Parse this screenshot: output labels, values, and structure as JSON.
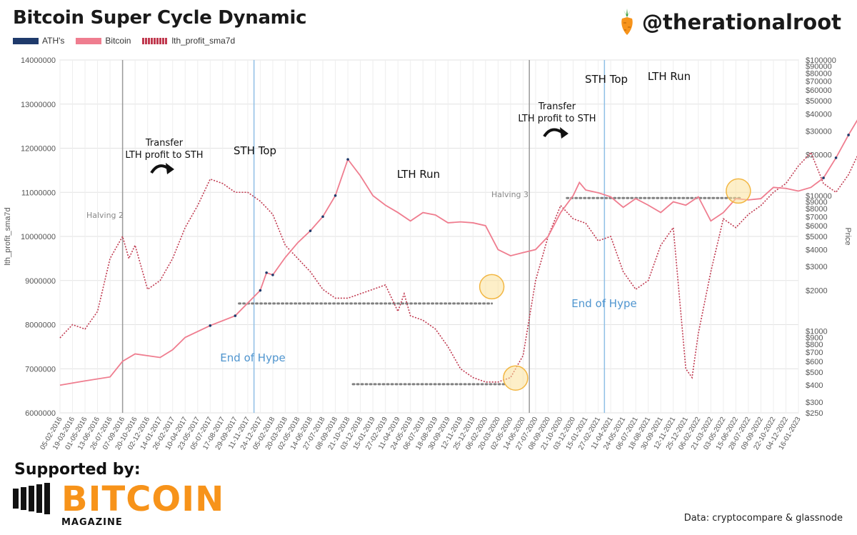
{
  "title": "Bitcoin Super Cycle Dynamic",
  "handle": "@therationalroot",
  "footer": {
    "supported": "Supported by:",
    "brand": "BITCOIN",
    "brand_sub": "MAGAZINE",
    "source": "Data: cryptocompare & glassnode"
  },
  "colors": {
    "ath": "#1f3a6b",
    "bitcoin": "#ef7d8f",
    "lth": "#c0394f",
    "accent": "#f7931a"
  },
  "chart_data": {
    "type": "line",
    "legend": [
      "ATH's",
      "Bitcoin",
      "lth_profit_sma7d"
    ],
    "ylabel_left": "lth_profit_sma7d",
    "ylabel_right": "Price",
    "y_left": {
      "min": 6000000,
      "max": 14000000,
      "ticks": [
        "6000000",
        "7000000",
        "8000000",
        "9000000",
        "10000000",
        "11000000",
        "12000000",
        "13000000",
        "14000000"
      ]
    },
    "y_right": {
      "scale": "log",
      "min": 250,
      "max": 100000,
      "ticks": [
        {
          "v": 250,
          "label": "$250"
        },
        {
          "v": 300,
          "label": "$300"
        },
        {
          "v": 400,
          "label": "$400"
        },
        {
          "v": 500,
          "label": "$500"
        },
        {
          "v": 600,
          "label": "$600"
        },
        {
          "v": 700,
          "label": "$700"
        },
        {
          "v": 800,
          "label": "$800"
        },
        {
          "v": 900,
          "label": "$900"
        },
        {
          "v": 1000,
          "label": "$1000"
        },
        {
          "v": 2000,
          "label": "$2000"
        },
        {
          "v": 3000,
          "label": "$3000"
        },
        {
          "v": 4000,
          "label": "$4000"
        },
        {
          "v": 5000,
          "label": "$5000"
        },
        {
          "v": 6000,
          "label": "$6000"
        },
        {
          "v": 7000,
          "label": "$7000"
        },
        {
          "v": 8000,
          "label": "$8000"
        },
        {
          "v": 9000,
          "label": "$9000"
        },
        {
          "v": 10000,
          "label": "$10000"
        },
        {
          "v": 20000,
          "label": "$20000"
        },
        {
          "v": 30000,
          "label": "$30000"
        },
        {
          "v": 40000,
          "label": "$40000"
        },
        {
          "v": 50000,
          "label": "$50000"
        },
        {
          "v": 60000,
          "label": "$60000"
        },
        {
          "v": 70000,
          "label": "$70000"
        },
        {
          "v": 80000,
          "label": "$80000"
        },
        {
          "v": 90000,
          "label": "$90000"
        },
        {
          "v": 100000,
          "label": "$100000"
        }
      ]
    },
    "x_ticks": [
      "05-02-2016",
      "19-03-2016",
      "01-05-2016",
      "13-06-2016",
      "26-07-2016",
      "07-09-2016",
      "20-10-2016",
      "02-12-2016",
      "14-01-2017",
      "26-02-2017",
      "10-04-2017",
      "23-05-2017",
      "05-07-2017",
      "17-08-2017",
      "29-09-2017",
      "11-11-2017",
      "24-12-2017",
      "05-02-2018",
      "20-03-2018",
      "02-05-2018",
      "14-06-2018",
      "27-07-2018",
      "08-09-2018",
      "21-10-2018",
      "03-12-2018",
      "15-01-2019",
      "27-02-2019",
      "11-04-2019",
      "24-05-2019",
      "06-07-2019",
      "18-08-2019",
      "30-09-2019",
      "12-11-2019",
      "25-12-2019",
      "06-02-2020",
      "20-03-2020",
      "02-05-2020",
      "14-06-2020",
      "27-07-2020",
      "08-09-2020",
      "21-10-2020",
      "03-12-2020",
      "15-01-2021",
      "27-02-2021",
      "11-04-2021",
      "24-05-2021",
      "06-07-2021",
      "18-08-2021",
      "30-09-2021",
      "12-11-2021",
      "25-12-2021",
      "06-02-2022",
      "21-03-2022",
      "03-05-2022",
      "15-06-2022",
      "28-07-2022",
      "09-09-2022",
      "22-10-2022",
      "04-12-2022",
      "16-01-2023"
    ],
    "series": [
      {
        "name": "Bitcoin",
        "axis": "right",
        "points": [
          [
            0,
            400
          ],
          [
            2,
            430
          ],
          [
            4,
            460
          ],
          [
            5,
            600
          ],
          [
            6,
            680
          ],
          [
            8,
            640
          ],
          [
            9,
            730
          ],
          [
            10,
            900
          ],
          [
            12,
            1100
          ],
          [
            14,
            1300
          ],
          [
            16,
            2000
          ],
          [
            16.5,
            2700
          ],
          [
            17,
            2600
          ],
          [
            18,
            3500
          ],
          [
            19,
            4500
          ],
          [
            20,
            5500
          ],
          [
            21,
            7000
          ],
          [
            22,
            10000
          ],
          [
            23,
            18500
          ],
          [
            24,
            14000
          ],
          [
            25,
            10000
          ],
          [
            26,
            8500
          ],
          [
            27,
            7500
          ],
          [
            28,
            6500
          ],
          [
            29,
            7500
          ],
          [
            30,
            7200
          ],
          [
            31,
            6300
          ],
          [
            32,
            6400
          ],
          [
            33,
            6300
          ],
          [
            34,
            6000
          ],
          [
            35,
            4000
          ],
          [
            36,
            3600
          ],
          [
            37,
            3800
          ],
          [
            38,
            4000
          ],
          [
            39,
            5000
          ],
          [
            40,
            7500
          ],
          [
            41,
            10000
          ],
          [
            41.5,
            12500
          ],
          [
            42,
            11000
          ],
          [
            43,
            10500
          ],
          [
            44,
            9800
          ],
          [
            45,
            8200
          ],
          [
            46,
            9500
          ],
          [
            47,
            8500
          ],
          [
            48,
            7500
          ],
          [
            49,
            9000
          ],
          [
            50,
            8500
          ],
          [
            51,
            9800
          ],
          [
            52,
            6500
          ],
          [
            53,
            7500
          ],
          [
            54,
            9500
          ],
          [
            55,
            9300
          ],
          [
            56,
            9500
          ],
          [
            57,
            11500
          ],
          [
            58,
            11300
          ],
          [
            59,
            10800
          ],
          [
            60,
            11500
          ],
          [
            61,
            13500
          ],
          [
            62,
            19000
          ],
          [
            63,
            28000
          ],
          [
            64,
            40000
          ],
          [
            65,
            36000
          ],
          [
            66,
            50000
          ],
          [
            67,
            58000
          ],
          [
            68,
            60000
          ],
          [
            69,
            55000
          ],
          [
            70,
            37000
          ],
          [
            71,
            34000
          ],
          [
            72,
            38000
          ],
          [
            73,
            47000
          ],
          [
            74,
            44000
          ],
          [
            75,
            43000
          ],
          [
            76,
            62000
          ],
          [
            77,
            67000
          ],
          [
            78,
            55000
          ],
          [
            79,
            48000
          ],
          [
            80,
            42000
          ],
          [
            81,
            38000
          ],
          [
            82,
            41000
          ]
        ]
      },
      {
        "name": "lth_profit_sma7d",
        "axis": "left",
        "points": [
          [
            0,
            7700000
          ],
          [
            1,
            8000000
          ],
          [
            2,
            7900000
          ],
          [
            3,
            8300000
          ],
          [
            4,
            9500000
          ],
          [
            5,
            10000000
          ],
          [
            5.5,
            9500000
          ],
          [
            6,
            9800000
          ],
          [
            7,
            8800000
          ],
          [
            8,
            9000000
          ],
          [
            9,
            9500000
          ],
          [
            10,
            10200000
          ],
          [
            11,
            10700000
          ],
          [
            12,
            11300000
          ],
          [
            13,
            11200000
          ],
          [
            14,
            11000000
          ],
          [
            15,
            11000000
          ],
          [
            16,
            10800000
          ],
          [
            17,
            10500000
          ],
          [
            18,
            9800000
          ],
          [
            19,
            9500000
          ],
          [
            20,
            9200000
          ],
          [
            21,
            8800000
          ],
          [
            22,
            8600000
          ],
          [
            23,
            8600000
          ],
          [
            24,
            8700000
          ],
          [
            25,
            8800000
          ],
          [
            26,
            8900000
          ],
          [
            27,
            8300000
          ],
          [
            27.5,
            8700000
          ],
          [
            28,
            8200000
          ],
          [
            29,
            8100000
          ],
          [
            30,
            7900000
          ],
          [
            31,
            7500000
          ],
          [
            32,
            7000000
          ],
          [
            33,
            6800000
          ],
          [
            34,
            6700000
          ],
          [
            35,
            6700000
          ],
          [
            36,
            6800000
          ],
          [
            37,
            7300000
          ],
          [
            38,
            9000000
          ],
          [
            39,
            10000000
          ],
          [
            40,
            10700000
          ],
          [
            41,
            10400000
          ],
          [
            42,
            10300000
          ],
          [
            43,
            9900000
          ],
          [
            44,
            10000000
          ],
          [
            45,
            9200000
          ],
          [
            46,
            8800000
          ],
          [
            47,
            9000000
          ],
          [
            48,
            9800000
          ],
          [
            49,
            10200000
          ],
          [
            50,
            7000000
          ],
          [
            50.5,
            6800000
          ],
          [
            51,
            7800000
          ],
          [
            52,
            9200000
          ],
          [
            53,
            10400000
          ],
          [
            54,
            10200000
          ],
          [
            55,
            10500000
          ],
          [
            56,
            10700000
          ],
          [
            57,
            11000000
          ],
          [
            58,
            11200000
          ],
          [
            59,
            11600000
          ],
          [
            60,
            11900000
          ],
          [
            61,
            11200000
          ],
          [
            62,
            11000000
          ],
          [
            63,
            11400000
          ],
          [
            64,
            12000000
          ],
          [
            65,
            11800000
          ],
          [
            66,
            11200000
          ],
          [
            67,
            10900000
          ],
          [
            68,
            11000000
          ],
          [
            69,
            11200000
          ],
          [
            70,
            11400000
          ],
          [
            71,
            11600000
          ],
          [
            72,
            11900000
          ],
          [
            73,
            11700000
          ],
          [
            74,
            12300000
          ],
          [
            75,
            12000000
          ],
          [
            76,
            13000000
          ],
          [
            77,
            12500000
          ],
          [
            78,
            12000000
          ],
          [
            79,
            11600000
          ],
          [
            80,
            11300000
          ],
          [
            81,
            10900000
          ],
          [
            82,
            11000000
          ]
        ]
      }
    ],
    "annotations": {
      "halving2": "Halving 2",
      "halving3": "Halving 3",
      "sth_top": "STH  Top",
      "lth_run": "LTH  Run",
      "transfer_line1": "Transfer",
      "transfer_line2": "LTH profit to STH",
      "end_of_hype": "End of Hype"
    }
  }
}
